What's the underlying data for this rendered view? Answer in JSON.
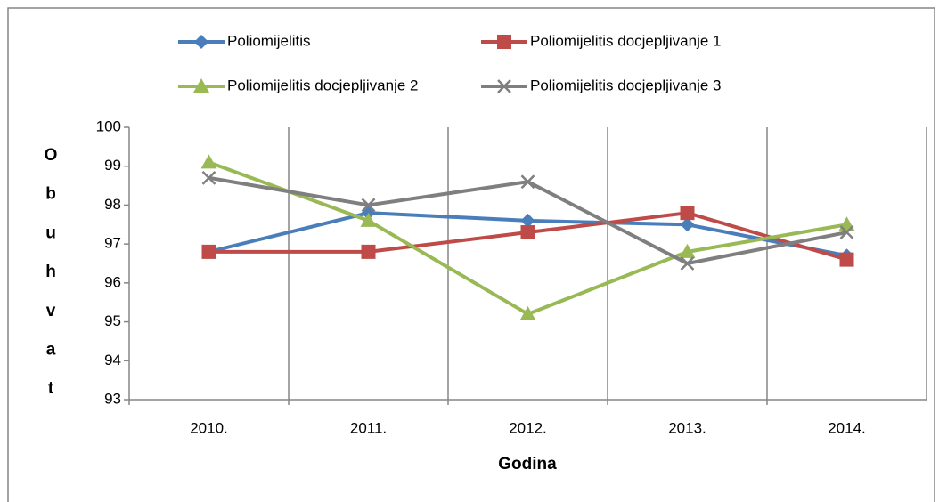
{
  "chart_data": {
    "type": "line",
    "x_label": "Godina",
    "y_label": "Obuhvat",
    "categories": [
      "2010.",
      "2011.",
      "2012.",
      "2013.",
      "2014."
    ],
    "series": [
      {
        "name": "Poliomijelitis",
        "color": "#4a7ebb",
        "marker": "diamond",
        "values": [
          96.8,
          97.8,
          97.6,
          97.5,
          96.7
        ]
      },
      {
        "name": "Poliomijelitis docjepljivanje 1",
        "color": "#be4b48",
        "marker": "square",
        "values": [
          96.8,
          96.8,
          97.3,
          97.8,
          96.6
        ]
      },
      {
        "name": "Poliomijelitis docjepljivanje 2",
        "color": "#98b954",
        "marker": "triangle",
        "values": [
          99.1,
          97.6,
          95.2,
          96.8,
          97.5
        ]
      },
      {
        "name": "Poliomijelitis docjepljivanje 3",
        "color": "#7f7f7f",
        "marker": "x",
        "values": [
          98.7,
          98.0,
          98.6,
          96.5,
          97.3
        ]
      }
    ],
    "ylim": [
      93,
      100
    ],
    "yticks": [
      93,
      94,
      95,
      96,
      97,
      98,
      99,
      100
    ],
    "grid": "vertical",
    "legend": "top"
  }
}
